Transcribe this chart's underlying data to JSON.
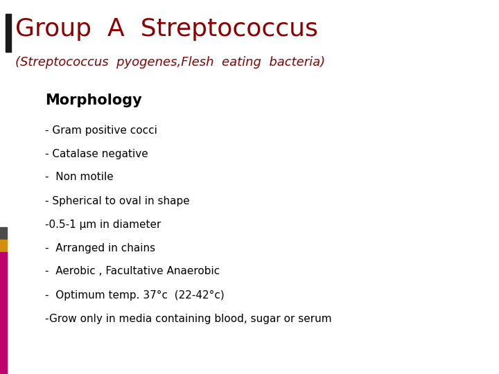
{
  "title": "Group  A  Streptococcus",
  "subtitle": "(Streptococcus  pyogenes,Flesh  eating  bacteria)",
  "section": "Morphology",
  "bullet_lines": [
    "- Gram positive cocci",
    "- Catalase negative",
    "-  Non motile",
    "- Spherical to oval in shape",
    "-0.5-1 μm in diameter",
    "-  Arranged in chains",
    "-  Aerobic , Facultative Anaerobic",
    "-  Optimum temp. 37°c  (22-42°c)",
    "-Grow only in media containing blood, sugar or serum"
  ],
  "title_color": "#8B0000",
  "subtitle_color": "#8B0000",
  "section_color": "#000000",
  "bullet_color": "#000000",
  "background_color": "#FFFFFF",
  "left_bar_black": "#4a4a4a",
  "left_bar_yellow": "#D4900A",
  "left_bar_pink": "#C0006A",
  "title_bar_color": "#1a1a1a"
}
